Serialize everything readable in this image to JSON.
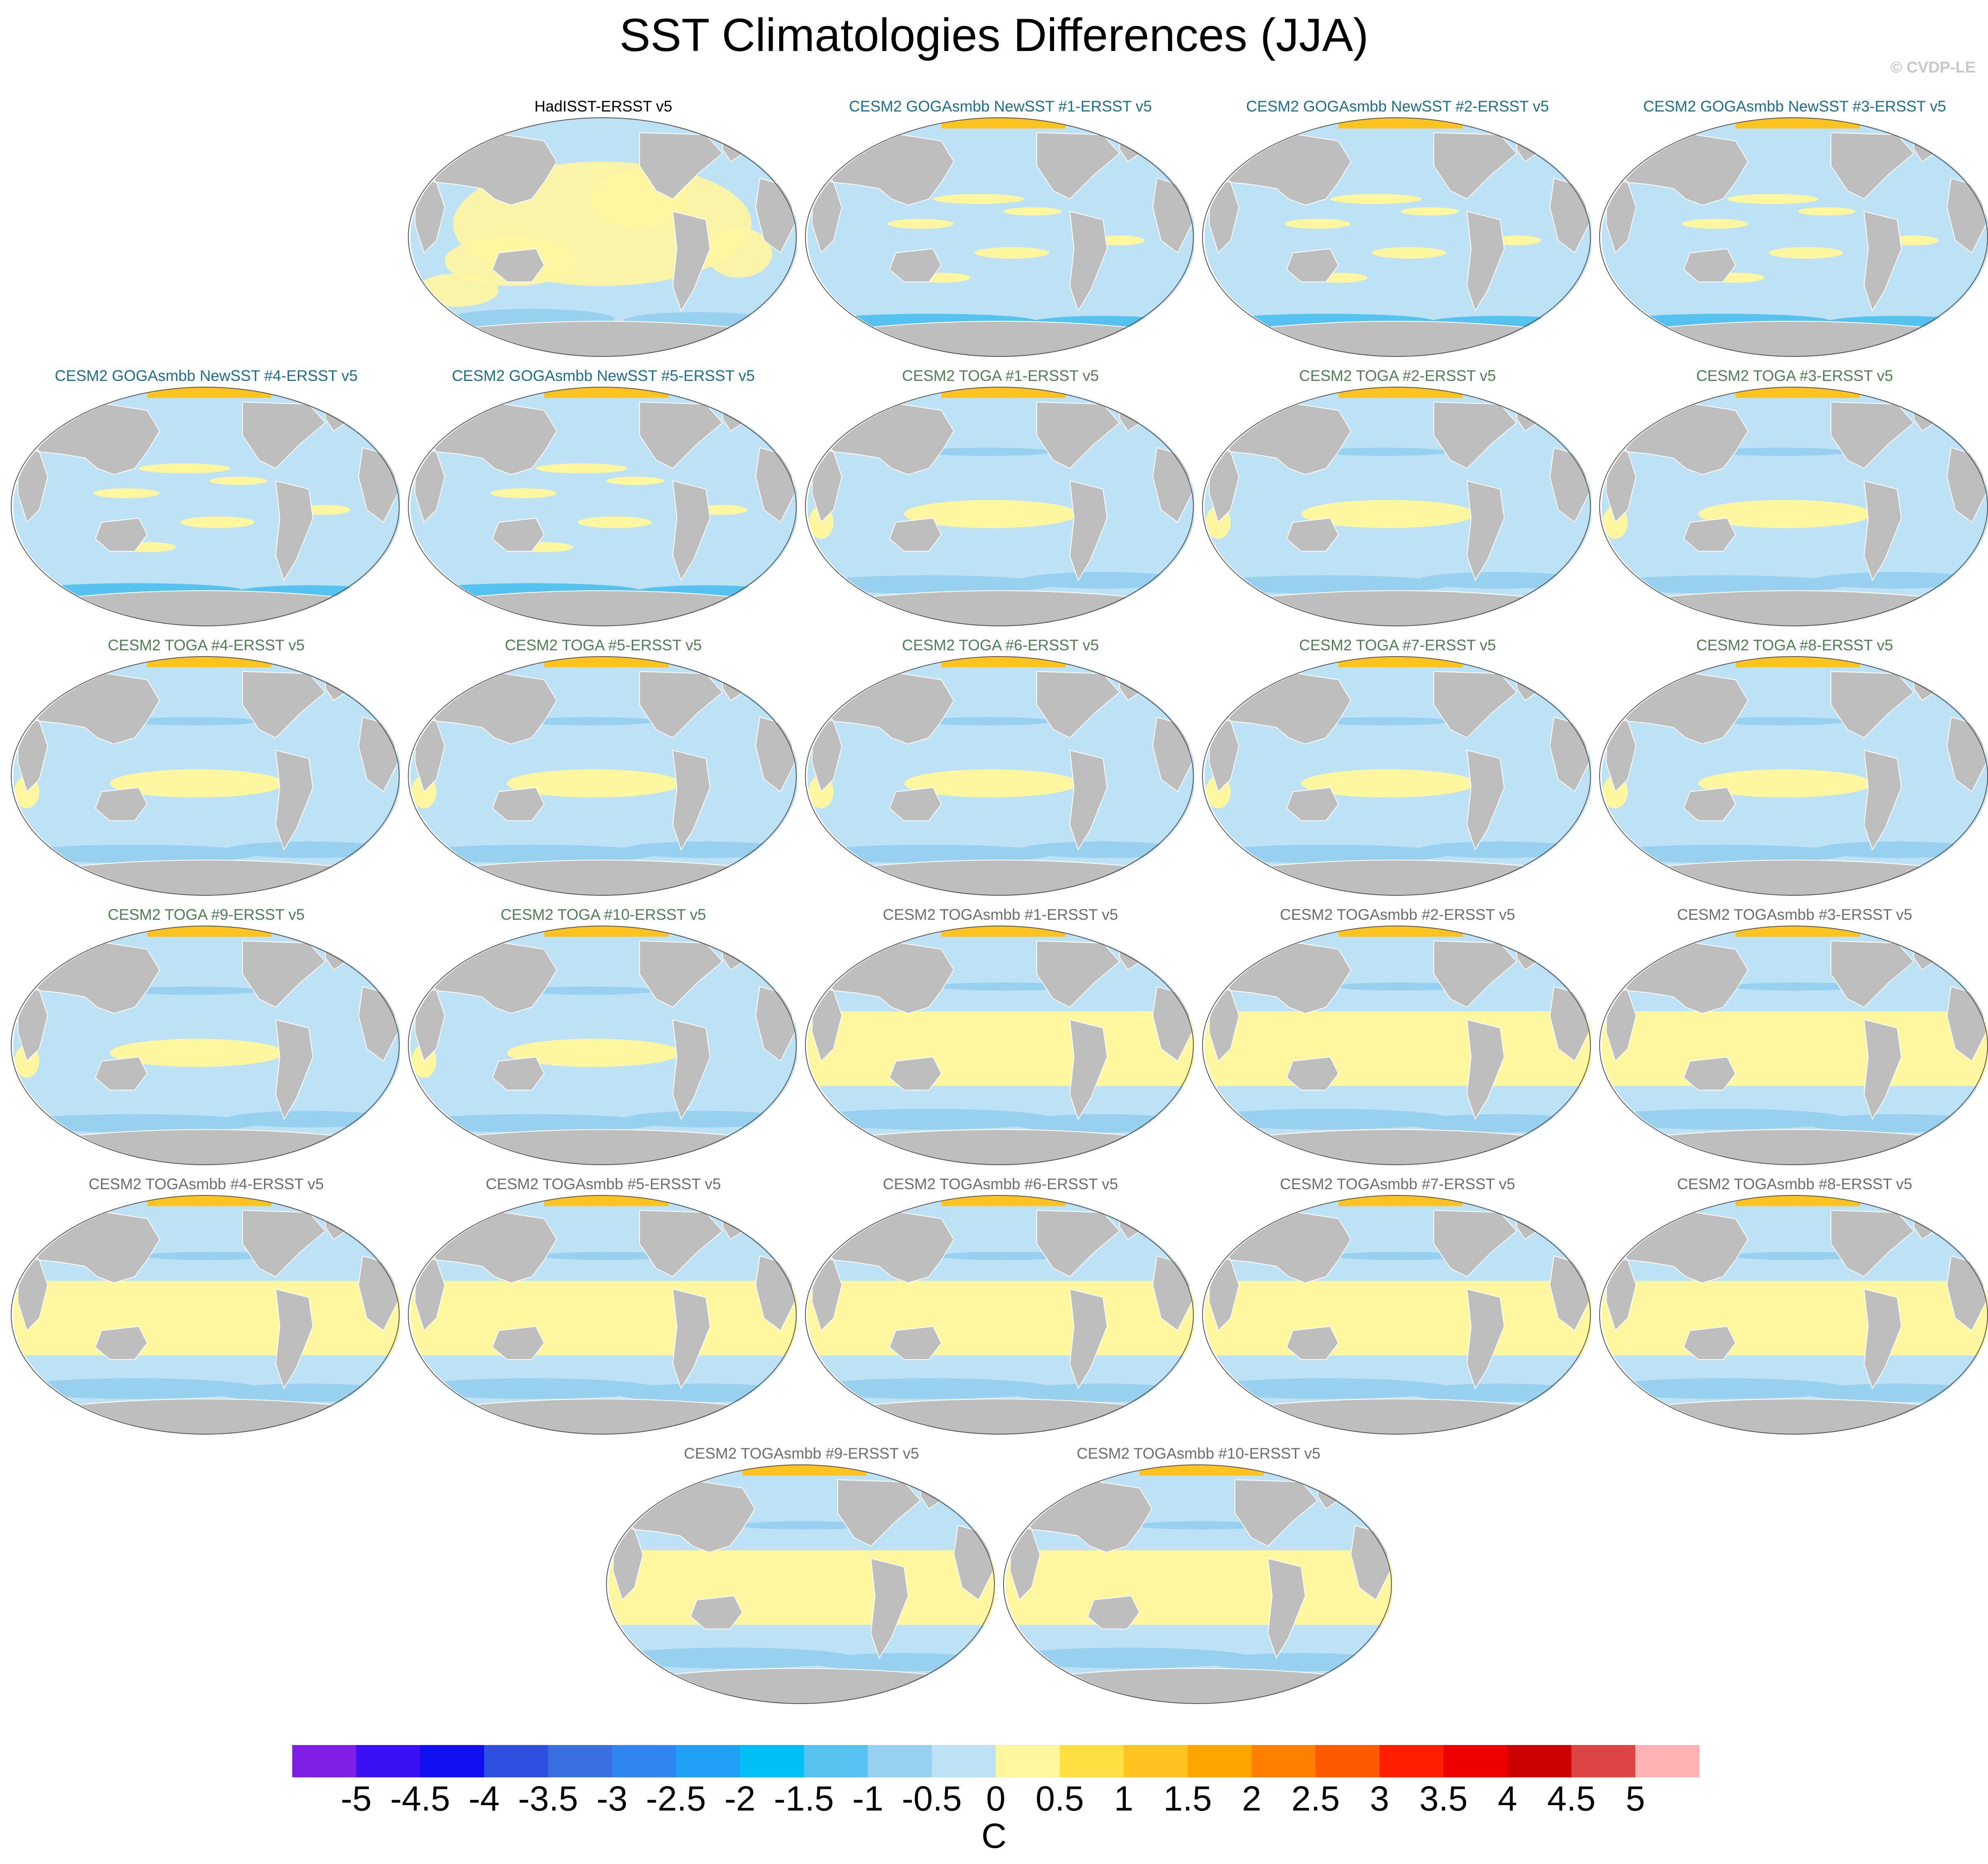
{
  "title": "SST Climatologies Differences (JJA)",
  "credit": "© CVDP-LE",
  "panels": [
    {
      "title": "HadISST-ERSST v5",
      "group": "obs",
      "pattern": "obs"
    },
    {
      "title": "CESM2 GOGAsmbb NewSST #1-ERSST v5",
      "group": "goga",
      "pattern": "goga"
    },
    {
      "title": "CESM2 GOGAsmbb NewSST #2-ERSST v5",
      "group": "goga",
      "pattern": "goga"
    },
    {
      "title": "CESM2 GOGAsmbb NewSST #3-ERSST v5",
      "group": "goga",
      "pattern": "goga"
    },
    {
      "title": "CESM2 GOGAsmbb NewSST #4-ERSST v5",
      "group": "goga",
      "pattern": "goga"
    },
    {
      "title": "CESM2 GOGAsmbb NewSST #5-ERSST v5",
      "group": "goga",
      "pattern": "goga"
    },
    {
      "title": "CESM2 TOGA #1-ERSST v5",
      "group": "toga",
      "pattern": "toga"
    },
    {
      "title": "CESM2 TOGA #2-ERSST v5",
      "group": "toga",
      "pattern": "toga"
    },
    {
      "title": "CESM2 TOGA #3-ERSST v5",
      "group": "toga",
      "pattern": "toga"
    },
    {
      "title": "CESM2 TOGA #4-ERSST v5",
      "group": "toga",
      "pattern": "toga"
    },
    {
      "title": "CESM2 TOGA #5-ERSST v5",
      "group": "toga",
      "pattern": "toga"
    },
    {
      "title": "CESM2 TOGA #6-ERSST v5",
      "group": "toga",
      "pattern": "toga"
    },
    {
      "title": "CESM2 TOGA #7-ERSST v5",
      "group": "toga",
      "pattern": "toga"
    },
    {
      "title": "CESM2 TOGA #8-ERSST v5",
      "group": "toga",
      "pattern": "toga"
    },
    {
      "title": "CESM2 TOGA #9-ERSST v5",
      "group": "toga",
      "pattern": "toga"
    },
    {
      "title": "CESM2 TOGA #10-ERSST v5",
      "group": "toga",
      "pattern": "toga"
    },
    {
      "title": "CESM2 TOGAsmbb #1-ERSST v5",
      "group": "togasmbb",
      "pattern": "togasmbb"
    },
    {
      "title": "CESM2 TOGAsmbb #2-ERSST v5",
      "group": "togasmbb",
      "pattern": "togasmbb"
    },
    {
      "title": "CESM2 TOGAsmbb #3-ERSST v5",
      "group": "togasmbb",
      "pattern": "togasmbb"
    },
    {
      "title": "CESM2 TOGAsmbb #4-ERSST v5",
      "group": "togasmbb",
      "pattern": "togasmbb"
    },
    {
      "title": "CESM2 TOGAsmbb #5-ERSST v5",
      "group": "togasmbb",
      "pattern": "togasmbb"
    },
    {
      "title": "CESM2 TOGAsmbb #6-ERSST v5",
      "group": "togasmbb",
      "pattern": "togasmbb"
    },
    {
      "title": "CESM2 TOGAsmbb #7-ERSST v5",
      "group": "togasmbb",
      "pattern": "togasmbb"
    },
    {
      "title": "CESM2 TOGAsmbb #8-ERSST v5",
      "group": "togasmbb",
      "pattern": "togasmbb"
    },
    {
      "title": "CESM2 TOGAsmbb #9-ERSST v5",
      "group": "togasmbb",
      "pattern": "togasmbb"
    },
    {
      "title": "CESM2 TOGAsmbb #10-ERSST v5",
      "group": "togasmbb",
      "pattern": "togasmbb"
    }
  ],
  "colorbar": {
    "unit": "C",
    "labels": [
      "-5",
      "-4.5",
      "-4",
      "-3.5",
      "-3",
      "-2.5",
      "-2",
      "-1.5",
      "-1",
      "-0.5",
      "0",
      "0.5",
      "1",
      "1.5",
      "2",
      "2.5",
      "3",
      "3.5",
      "4",
      "4.5",
      "5"
    ],
    "colors": [
      "#7f1fe6",
      "#3a10f5",
      "#1010f0",
      "#2f4fe0",
      "#3a6fe0",
      "#2f86f0",
      "#1fa0f5",
      "#00bff5",
      "#55c2ef",
      "#97d1ef",
      "#bde2f5",
      "#fff6a0",
      "#ffe042",
      "#ffc31f",
      "#ffa500",
      "#ff7f00",
      "#ff5a00",
      "#ff1f00",
      "#ee0000",
      "#cc0000",
      "#dd4444",
      "#ffb3b3"
    ]
  },
  "colors": {
    "land": "#bebebe",
    "ocean_base": "#bde2f5",
    "warm_small": "#fff6a0",
    "warm_mid": "#ffc31f",
    "cool_small": "#97d1ef",
    "cool_mid": "#55c2ef"
  }
}
